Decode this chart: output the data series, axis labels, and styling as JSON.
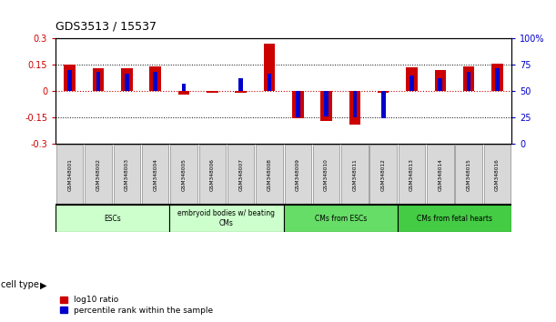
{
  "title": "GDS3513 / 15537",
  "samples": [
    "GSM348001",
    "GSM348002",
    "GSM348003",
    "GSM348004",
    "GSM348005",
    "GSM348006",
    "GSM348007",
    "GSM348008",
    "GSM348009",
    "GSM348010",
    "GSM348011",
    "GSM348012",
    "GSM348013",
    "GSM348014",
    "GSM348015",
    "GSM348016"
  ],
  "log10_ratio": [
    0.15,
    0.13,
    0.13,
    0.14,
    -0.02,
    -0.01,
    -0.01,
    0.27,
    -0.155,
    -0.17,
    -0.19,
    -0.01,
    0.135,
    0.12,
    0.14,
    0.155
  ],
  "percentile_rank": [
    70,
    68,
    67,
    68,
    57,
    50,
    62,
    67,
    25,
    26,
    25,
    24,
    65,
    62,
    68,
    72
  ],
  "red_color": "#cc0000",
  "blue_color": "#0000cc",
  "ylim_left": [
    -0.3,
    0.3
  ],
  "ylim_right": [
    0,
    100
  ],
  "yticks_left": [
    -0.3,
    -0.15,
    0.0,
    0.15,
    0.3
  ],
  "yticks_right": [
    0,
    25,
    50,
    75,
    100
  ],
  "ytick_labels_left": [
    "-0.3",
    "-0.15",
    "0",
    "0.15",
    "0.3"
  ],
  "ytick_labels_right": [
    "0",
    "25",
    "50",
    "75",
    "100%"
  ],
  "hlines_dotted": [
    -0.15,
    0.15
  ],
  "cell_type_groups": [
    {
      "label": "ESCs",
      "start": 0,
      "end": 3,
      "color": "#ccffcc"
    },
    {
      "label": "embryoid bodies w/ beating\nCMs",
      "start": 4,
      "end": 7,
      "color": "#ccffcc"
    },
    {
      "label": "CMs from ESCs",
      "start": 8,
      "end": 11,
      "color": "#66dd66"
    },
    {
      "label": "CMs from fetal hearts",
      "start": 12,
      "end": 15,
      "color": "#44cc44"
    }
  ],
  "legend_items": [
    {
      "label": "log10 ratio",
      "color": "#cc0000"
    },
    {
      "label": "percentile rank within the sample",
      "color": "#0000cc"
    }
  ],
  "bar_width": 0.4,
  "blue_bar_width": 0.15
}
